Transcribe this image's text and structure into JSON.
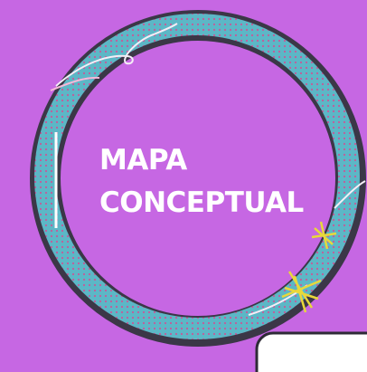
{
  "title": {
    "line1": "MAPA",
    "line2": "CONCEPTUAL"
  }
}
